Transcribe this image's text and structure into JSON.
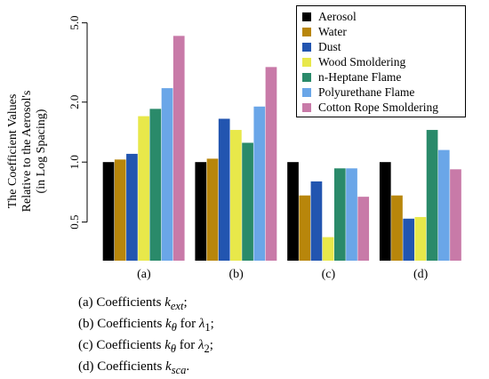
{
  "chart_data": {
    "type": "bar",
    "scale": "log",
    "ylabel_lines": [
      "The Coefficient Values",
      "Relative to the Aerosol's",
      "(in Log Spacing)"
    ],
    "yticks": [
      0.5,
      1.0,
      2.0,
      5.0
    ],
    "ytick_labels": [
      "0.5",
      "1.0",
      "2.0",
      "5.0"
    ],
    "ylim": [
      0.32,
      5.3
    ],
    "categories": [
      "(a)",
      "(b)",
      "(c)",
      "(d)"
    ],
    "legend_position": "top-right",
    "series": [
      {
        "name": "Aerosol",
        "color": "#000000",
        "values": [
          1.0,
          1.0,
          1.0,
          1.0
        ]
      },
      {
        "name": "Water",
        "color": "#b8860b",
        "values": [
          1.03,
          1.04,
          0.68,
          0.68
        ]
      },
      {
        "name": "Dust",
        "color": "#2255b0",
        "values": [
          1.1,
          1.65,
          0.8,
          0.52
        ]
      },
      {
        "name": "Wood Smoldering",
        "color": "#e8e84a",
        "values": [
          1.7,
          1.45,
          0.42,
          0.53
        ]
      },
      {
        "name": "n-Heptane Flame",
        "color": "#2a8a6a",
        "values": [
          1.85,
          1.25,
          0.93,
          1.45
        ]
      },
      {
        "name": "Polyurethane Flame",
        "color": "#6aa6e8",
        "values": [
          2.35,
          1.9,
          0.93,
          1.15
        ]
      },
      {
        "name": "Cotton Rope Smoldering",
        "color": "#c87aa8",
        "values": [
          4.3,
          3.0,
          0.67,
          0.92
        ]
      }
    ]
  },
  "captions": [
    {
      "prefix": "(a) Coefficients ",
      "symbol": "k",
      "sub": "ext",
      "suffix": ";",
      "extra": "",
      "extra_sub": "",
      "extra_suffix": ""
    },
    {
      "prefix": "(b) Coefficients ",
      "symbol": "k",
      "sub": "θ",
      "suffix": " for ",
      "extra": "λ",
      "extra_sub": "1",
      "extra_suffix": ";"
    },
    {
      "prefix": "(c) Coefficients ",
      "symbol": "k",
      "sub": "θ",
      "suffix": " for ",
      "extra": "λ",
      "extra_sub": "2",
      "extra_suffix": ";"
    },
    {
      "prefix": "(d) Coefficients ",
      "symbol": "k",
      "sub": "sca",
      "suffix": ".",
      "extra": "",
      "extra_sub": "",
      "extra_suffix": ""
    }
  ]
}
